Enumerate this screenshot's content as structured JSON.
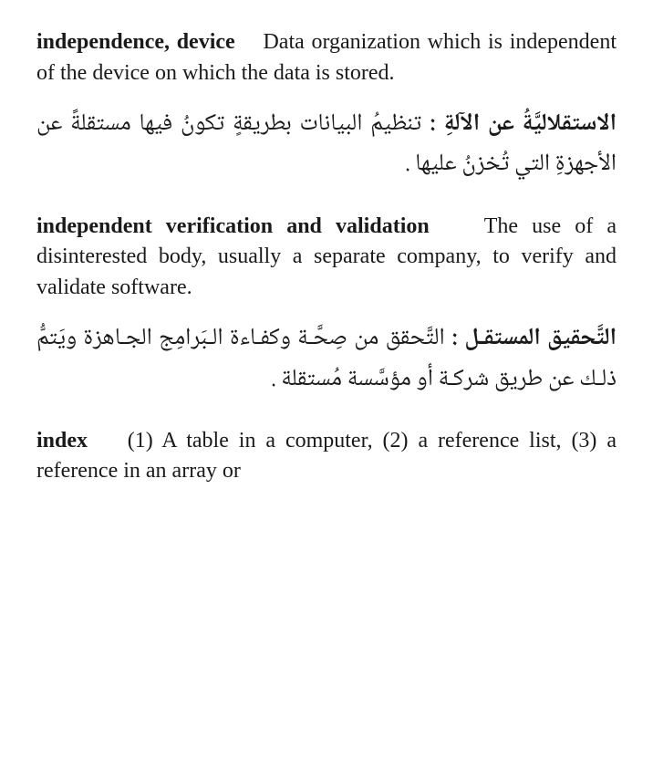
{
  "entries": [
    {
      "term_en": "independence, device",
      "def_en": "Data organiza­tion which is independent of the device on which the data is stored.",
      "term_ar": "الاستقلاليَّةُ عن الآلةِ :",
      "def_ar": "تنظيمُ البيانات بطريقةٍ تكونُ فيها مستقلةً عن الأجهزةِ التي تُخزنُ عليها ."
    },
    {
      "term_en": "independent verification and valida­tion",
      "def_en": "The use of a disinterested body, usually a separate company, to verify and validate software.",
      "term_ar": "التَّحقيق المستقـل :",
      "def_ar": "التَّحقق من صِحَّـة وكفـاءة الـبَرامِج الجـاهزة ويَتمُّ ذلـك عن طريق شركـة أو مؤسَّسة مُستقلة ."
    },
    {
      "term_en": "index",
      "def_en": "(1) A table in a computer, (2) a reference list, (3) a reference in an array or",
      "term_ar": "",
      "def_ar": ""
    }
  ]
}
